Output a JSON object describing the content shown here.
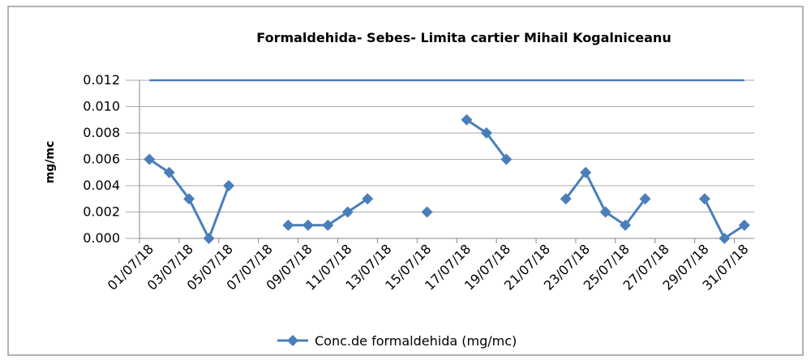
{
  "chart_data": {
    "type": "line",
    "title": "Formaldehida- Sebes- Limita cartier Mihail  Kogalniceanu",
    "y_label": "mg/mc",
    "categories": [
      "01/07/18",
      null,
      "03/07/18",
      null,
      "05/07/18",
      null,
      "07/07/18",
      null,
      "09/07/18",
      null,
      "11/07/18",
      null,
      "13/07/18",
      null,
      "15/07/18",
      null,
      "17/07/18",
      null,
      "19/07/18",
      null,
      "21/07/18",
      null,
      "23/07/18",
      null,
      "25/07/18",
      null,
      "27/07/18",
      null,
      "29/07/18",
      null,
      "31/07/18"
    ],
    "series": [
      {
        "name": "Conc.de formaldehida (mg/mc)",
        "color": "#4a7ebb",
        "values": [
          0.006,
          0.005,
          0.003,
          0,
          0.004,
          null,
          null,
          0.001,
          0.001,
          0.001,
          0.002,
          0.003,
          null,
          null,
          0.002,
          null,
          0.009,
          0.008,
          0.006,
          null,
          null,
          0.003,
          0.005,
          0.002,
          0.001,
          0.003,
          null,
          null,
          0.003,
          0,
          0.001
        ]
      }
    ],
    "reference_line": {
      "value": 0.012,
      "color": "#4a7ebb"
    },
    "ylim": [
      0,
      0.012
    ],
    "yticks": [
      {
        "value": 0,
        "label": "0.000"
      },
      {
        "value": 0.002,
        "label": "0.002"
      },
      {
        "value": 0.004,
        "label": "0.004"
      },
      {
        "value": 0.006,
        "label": "0.006"
      },
      {
        "value": 0.008,
        "label": "0.008"
      },
      {
        "value": 0.01,
        "label": "0.010"
      },
      {
        "value": 0.012,
        "label": "0.012"
      }
    ],
    "grid": true,
    "legend": "bottom"
  }
}
